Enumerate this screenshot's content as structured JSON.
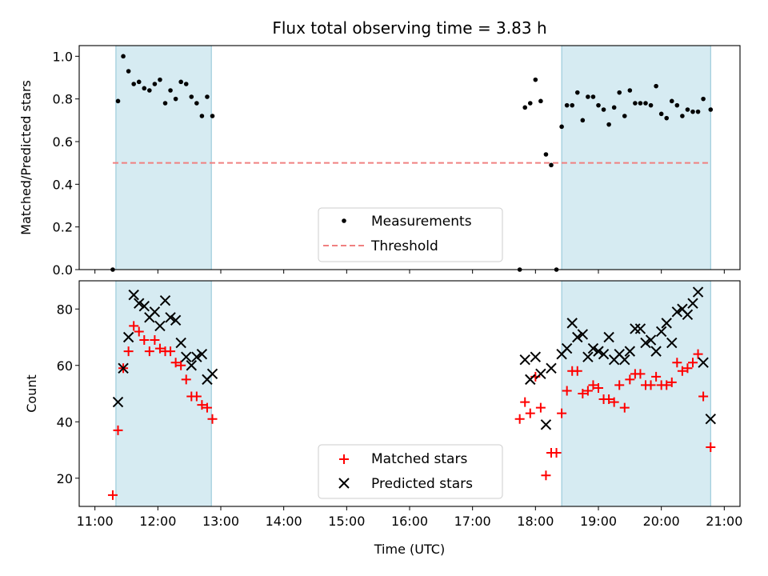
{
  "chart_data": [
    {
      "type": "scatter",
      "title": "Flux total observing time = 3.83 h",
      "xlabel": "",
      "ylabel": "Matched/Predicted stars",
      "ylim": [
        0,
        1.05
      ],
      "yticks": [
        "0.0",
        "0.2",
        "0.4",
        "0.6",
        "0.8",
        "1.0"
      ],
      "xlim": [
        "10:45",
        "21:15"
      ],
      "shaded_spans": [
        [
          "11:20",
          "12:51"
        ],
        [
          "18:25",
          "20:47"
        ]
      ],
      "legend_position": "lower center",
      "series": [
        {
          "name": "Measurements",
          "marker": "dot",
          "color": "#000000",
          "points": [
            [
              "11:17",
              0.0
            ],
            [
              "11:22",
              0.79
            ],
            [
              "11:27",
              1.0
            ],
            [
              "11:32",
              0.93
            ],
            [
              "11:37",
              0.87
            ],
            [
              "11:42",
              0.88
            ],
            [
              "11:47",
              0.85
            ],
            [
              "11:52",
              0.84
            ],
            [
              "11:57",
              0.87
            ],
            [
              "12:02",
              0.89
            ],
            [
              "12:07",
              0.78
            ],
            [
              "12:12",
              0.84
            ],
            [
              "12:17",
              0.8
            ],
            [
              "12:22",
              0.88
            ],
            [
              "12:27",
              0.87
            ],
            [
              "12:32",
              0.81
            ],
            [
              "12:37",
              0.78
            ],
            [
              "12:42",
              0.72
            ],
            [
              "12:47",
              0.81
            ],
            [
              "12:52",
              0.72
            ],
            [
              "17:45",
              0.0
            ],
            [
              "17:50",
              0.76
            ],
            [
              "17:55",
              0.78
            ],
            [
              "18:00",
              0.89
            ],
            [
              "18:05",
              0.79
            ],
            [
              "18:10",
              0.54
            ],
            [
              "18:15",
              0.49
            ],
            [
              "18:20",
              0.0
            ],
            [
              "18:25",
              0.67
            ],
            [
              "18:30",
              0.77
            ],
            [
              "18:35",
              0.77
            ],
            [
              "18:40",
              0.83
            ],
            [
              "18:45",
              0.7
            ],
            [
              "18:50",
              0.81
            ],
            [
              "18:55",
              0.81
            ],
            [
              "19:00",
              0.77
            ],
            [
              "19:05",
              0.75
            ],
            [
              "19:10",
              0.68
            ],
            [
              "19:15",
              0.76
            ],
            [
              "19:20",
              0.83
            ],
            [
              "19:25",
              0.72
            ],
            [
              "19:30",
              0.84
            ],
            [
              "19:35",
              0.78
            ],
            [
              "19:40",
              0.78
            ],
            [
              "19:45",
              0.78
            ],
            [
              "19:50",
              0.77
            ],
            [
              "19:55",
              0.86
            ],
            [
              "20:00",
              0.73
            ],
            [
              "20:05",
              0.71
            ],
            [
              "20:10",
              0.79
            ],
            [
              "20:15",
              0.77
            ],
            [
              "20:20",
              0.72
            ],
            [
              "20:25",
              0.75
            ],
            [
              "20:30",
              0.74
            ],
            [
              "20:35",
              0.74
            ],
            [
              "20:40",
              0.8
            ],
            [
              "20:47",
              0.75
            ]
          ]
        },
        {
          "name": "Threshold",
          "marker": "dashed-line",
          "color": "#f08080",
          "points": [
            [
              "11:17",
              0.5
            ],
            [
              "20:47",
              0.5
            ]
          ]
        }
      ]
    },
    {
      "type": "scatter",
      "title": "",
      "xlabel": "Time (UTC)",
      "ylabel": "Count",
      "ylim": [
        10,
        90
      ],
      "yticks": [
        "20",
        "40",
        "60",
        "80"
      ],
      "xlim": [
        "10:45",
        "21:15"
      ],
      "xticks": [
        "11:00",
        "12:00",
        "13:00",
        "14:00",
        "15:00",
        "16:00",
        "17:00",
        "18:00",
        "19:00",
        "20:00",
        "21:00"
      ],
      "shaded_spans": [
        [
          "11:20",
          "12:51"
        ],
        [
          "18:25",
          "20:47"
        ]
      ],
      "legend_position": "lower center",
      "series": [
        {
          "name": "Matched stars",
          "marker": "plus",
          "color": "#ff0000",
          "points": [
            [
              "11:17",
              14
            ],
            [
              "11:22",
              37
            ],
            [
              "11:27",
              59
            ],
            [
              "11:32",
              65
            ],
            [
              "11:37",
              74
            ],
            [
              "11:42",
              72
            ],
            [
              "11:47",
              69
            ],
            [
              "11:52",
              65
            ],
            [
              "11:57",
              69
            ],
            [
              "12:02",
              66
            ],
            [
              "12:07",
              65
            ],
            [
              "12:12",
              65
            ],
            [
              "12:17",
              61
            ],
            [
              "12:22",
              60
            ],
            [
              "12:27",
              55
            ],
            [
              "12:32",
              49
            ],
            [
              "12:37",
              49
            ],
            [
              "12:42",
              46
            ],
            [
              "12:47",
              45
            ],
            [
              "12:52",
              41
            ],
            [
              "17:45",
              41
            ],
            [
              "17:50",
              47
            ],
            [
              "17:55",
              43
            ],
            [
              "18:00",
              56
            ],
            [
              "18:05",
              45
            ],
            [
              "18:10",
              21
            ],
            [
              "18:15",
              29
            ],
            [
              "18:20",
              29
            ],
            [
              "18:25",
              43
            ],
            [
              "18:30",
              51
            ],
            [
              "18:35",
              58
            ],
            [
              "18:40",
              58
            ],
            [
              "18:45",
              50
            ],
            [
              "18:50",
              51
            ],
            [
              "18:55",
              53
            ],
            [
              "19:00",
              52
            ],
            [
              "19:05",
              48
            ],
            [
              "19:10",
              48
            ],
            [
              "19:15",
              47
            ],
            [
              "19:20",
              53
            ],
            [
              "19:25",
              45
            ],
            [
              "19:30",
              55
            ],
            [
              "19:35",
              57
            ],
            [
              "19:40",
              57
            ],
            [
              "19:45",
              53
            ],
            [
              "19:50",
              53
            ],
            [
              "19:55",
              56
            ],
            [
              "20:00",
              53
            ],
            [
              "20:05",
              53
            ],
            [
              "20:10",
              54
            ],
            [
              "20:15",
              61
            ],
            [
              "20:20",
              58
            ],
            [
              "20:25",
              59
            ],
            [
              "20:30",
              61
            ],
            [
              "20:35",
              64
            ],
            [
              "20:40",
              49
            ],
            [
              "20:47",
              31
            ]
          ]
        },
        {
          "name": "Predicted stars",
          "marker": "x",
          "color": "#000000",
          "points": [
            [
              "11:22",
              47
            ],
            [
              "11:27",
              59
            ],
            [
              "11:32",
              70
            ],
            [
              "11:37",
              85
            ],
            [
              "11:42",
              82
            ],
            [
              "11:47",
              81
            ],
            [
              "11:52",
              77
            ],
            [
              "11:57",
              79
            ],
            [
              "12:02",
              74
            ],
            [
              "12:07",
              83
            ],
            [
              "12:12",
              77
            ],
            [
              "12:17",
              76
            ],
            [
              "12:22",
              68
            ],
            [
              "12:27",
              63
            ],
            [
              "12:32",
              60
            ],
            [
              "12:37",
              63
            ],
            [
              "12:42",
              64
            ],
            [
              "12:47",
              55
            ],
            [
              "12:52",
              57
            ],
            [
              "17:50",
              62
            ],
            [
              "17:55",
              55
            ],
            [
              "18:00",
              63
            ],
            [
              "18:05",
              57
            ],
            [
              "18:10",
              39
            ],
            [
              "18:15",
              59
            ],
            [
              "18:25",
              64
            ],
            [
              "18:30",
              66
            ],
            [
              "18:35",
              75
            ],
            [
              "18:40",
              70
            ],
            [
              "18:45",
              71
            ],
            [
              "18:50",
              63
            ],
            [
              "18:55",
              66
            ],
            [
              "19:00",
              65
            ],
            [
              "19:05",
              64
            ],
            [
              "19:10",
              70
            ],
            [
              "19:15",
              62
            ],
            [
              "19:20",
              64
            ],
            [
              "19:25",
              62
            ],
            [
              "19:30",
              65
            ],
            [
              "19:35",
              73
            ],
            [
              "19:40",
              73
            ],
            [
              "19:45",
              68
            ],
            [
              "19:50",
              69
            ],
            [
              "19:55",
              65
            ],
            [
              "20:00",
              72
            ],
            [
              "20:05",
              75
            ],
            [
              "20:10",
              68
            ],
            [
              "20:15",
              79
            ],
            [
              "20:20",
              80
            ],
            [
              "20:25",
              78
            ],
            [
              "20:30",
              82
            ],
            [
              "20:35",
              86
            ],
            [
              "20:40",
              61
            ],
            [
              "20:47",
              41
            ]
          ]
        }
      ]
    }
  ],
  "colors": {
    "span_fill": "#add8e6",
    "span_edge": "#8ec4d6",
    "measurement": "#000000",
    "threshold": "#f08080",
    "matched": "#ff0000",
    "predicted": "#000000"
  }
}
